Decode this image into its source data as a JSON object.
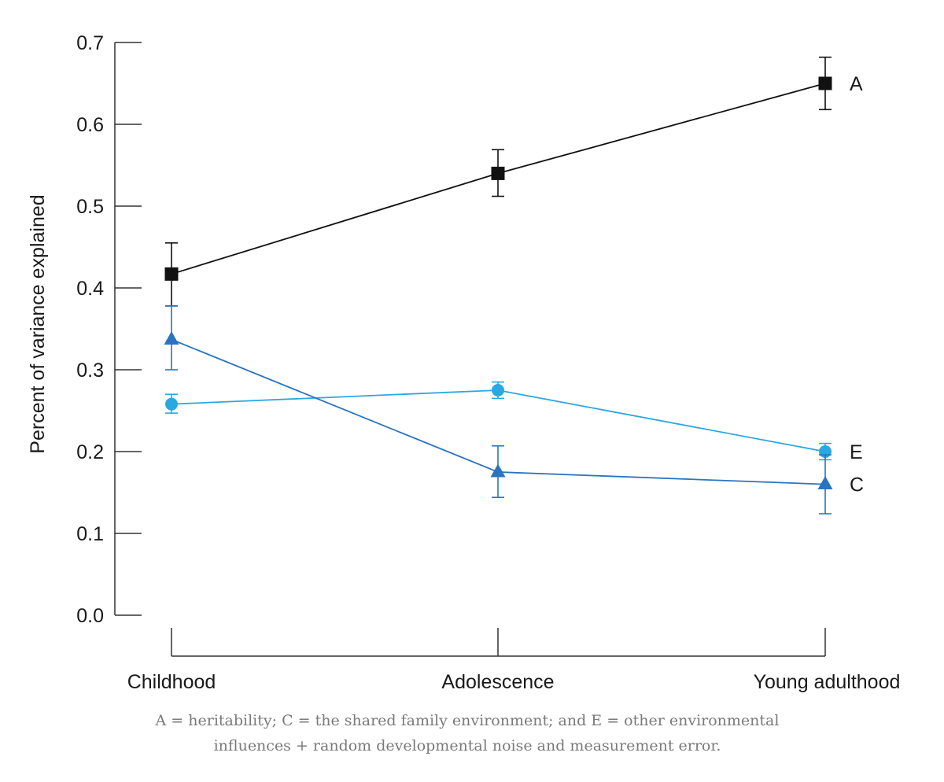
{
  "chart_data": {
    "type": "line",
    "ylabel": "Percent of variance explained",
    "xlabel": "",
    "ylim": [
      0.0,
      0.7
    ],
    "yticks": [
      "0.0",
      "0.1",
      "0.2",
      "0.3",
      "0.4",
      "0.5",
      "0.6",
      "0.7"
    ],
    "categories": [
      "Childhood",
      "Adolescence",
      "Young adulthood"
    ],
    "grid": false,
    "legend": "labels at right end of each series",
    "series": [
      {
        "name": "A",
        "color": "#111111",
        "marker": "square",
        "values": [
          0.417,
          0.54,
          0.65
        ],
        "err_low": [
          0.378,
          0.512,
          0.618
        ],
        "err_high": [
          0.455,
          0.569,
          0.682
        ]
      },
      {
        "name": "E",
        "color": "#2aa8e0",
        "marker": "circle",
        "values": [
          0.258,
          0.275,
          0.2
        ],
        "err_low": [
          0.247,
          0.265,
          0.19
        ],
        "err_high": [
          0.27,
          0.285,
          0.21
        ]
      },
      {
        "name": "C",
        "color": "#2a74c0",
        "marker": "triangle",
        "values": [
          0.337,
          0.175,
          0.16
        ],
        "err_low": [
          0.3,
          0.144,
          0.124
        ],
        "err_high": [
          0.378,
          0.207,
          0.196
        ]
      }
    ]
  },
  "caption": {
    "line1": "A = heritability; C = the shared family environment; and E = other environmental",
    "line2": "influences + random developmental noise and measurement error."
  }
}
